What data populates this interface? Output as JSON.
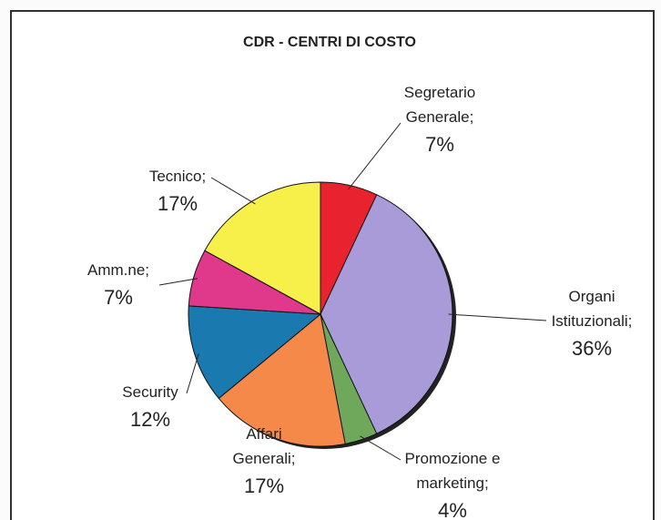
{
  "chart_data": {
    "type": "pie",
    "title": "CDR - CENTRI DI COSTO",
    "categories": [
      "Segretario Generale;",
      "Organi Istituzionali;",
      "Promozione e marketing;",
      "Affari Generali;",
      "Security",
      "Amm.ne;",
      "Tecnico;"
    ],
    "values": [
      7,
      36,
      4,
      17,
      12,
      7,
      17
    ],
    "value_labels": [
      "7%",
      "36%",
      "4%",
      "17%",
      "12%",
      "7%",
      "17%"
    ],
    "colors": [
      "#e8232f",
      "#a99bd8",
      "#6fa85a",
      "#f5894a",
      "#1a7ab0",
      "#e0388a",
      "#f7f04a"
    ]
  }
}
